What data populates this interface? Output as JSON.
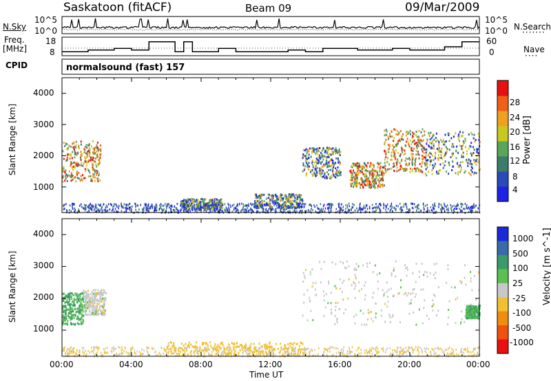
{
  "header": {
    "station": "Saskatoon (fitACF)",
    "beam": "Beam 09",
    "date": "09/Mar/2009"
  },
  "noise_panel": {
    "left_label": "N.Sky",
    "right_label": "N.Search",
    "left_ticks": [
      "10^5",
      "10^0"
    ],
    "right_ticks": [
      "10^5",
      "10^0"
    ]
  },
  "freq_panel": {
    "left_label_1": "Freq.",
    "left_label_2": "[MHz]",
    "right_label": "Nave",
    "left_ticks": [
      "18",
      "8"
    ],
    "right_ticks": [
      "60",
      "0"
    ]
  },
  "cpid_panel": {
    "label": "CPID",
    "program": "normalsound (fast) 157"
  },
  "x_axis": {
    "label": "Time UT",
    "ticks": [
      "00:00",
      "04:00",
      "08:00",
      "12:00",
      "16:00",
      "20:00",
      "00:00"
    ]
  },
  "power_panel": {
    "ylabel": "Slant Range [km]",
    "yticks": [
      "1000",
      "2000",
      "3000",
      "4000"
    ],
    "colorbar_label": "Power [dB]",
    "colorbar_ticks": [
      "4",
      "8",
      "12",
      "16",
      "20",
      "24",
      "28"
    ],
    "colors": [
      "#1e22e6",
      "#2a4ab8",
      "#3a7d6a",
      "#58a65a",
      "#c8c81e",
      "#f0a020",
      "#f06018",
      "#e81010"
    ]
  },
  "velocity_panel": {
    "ylabel": "Slant Range [km]",
    "yticks": [
      "1000",
      "2000",
      "3000",
      "4000"
    ],
    "colorbar_label": "Velocity [m s^-1]",
    "colorbar_ticks": [
      "1000",
      "500",
      "100",
      "25",
      "-25",
      "-100",
      "-500",
      "-1000"
    ],
    "colors": [
      "#1a2ad8",
      "#3a6aa8",
      "#3a9a6a",
      "#5cc050",
      "#c8c8c8",
      "#f0c030",
      "#f08c10",
      "#f05010",
      "#e81010"
    ]
  },
  "chart_data": {
    "type": "heatmap",
    "x_range_hours": [
      0,
      24
    ],
    "y_range_km": [
      180,
      4500
    ],
    "ground_scatter_color": "#c8c8c8",
    "power_regions": [
      {
        "t0": 0.0,
        "t1": 2.2,
        "r0": 1200,
        "r1": 2500,
        "level": "high"
      },
      {
        "t0": 6.8,
        "t1": 9.2,
        "r0": 300,
        "r1": 650,
        "level": "medium"
      },
      {
        "t0": 11.0,
        "t1": 13.8,
        "r0": 350,
        "r1": 800,
        "level": "medium"
      },
      {
        "t0": 13.8,
        "t1": 16.0,
        "r0": 1300,
        "r1": 2300,
        "level": "medium"
      },
      {
        "t0": 16.5,
        "t1": 18.5,
        "r0": 1000,
        "r1": 1800,
        "level": "high"
      },
      {
        "t0": 18.5,
        "t1": 20.8,
        "r0": 1500,
        "r1": 2900,
        "level": "high"
      },
      {
        "t0": 20.8,
        "t1": 24.0,
        "r0": 1400,
        "r1": 2800,
        "level": "medium"
      }
    ],
    "velocity_regions": [
      {
        "t0": 0.0,
        "t1": 1.2,
        "r0": 1200,
        "r1": 2200,
        "vel": 100
      },
      {
        "t0": 1.2,
        "t1": 2.5,
        "r0": 1500,
        "r1": 2300,
        "vel": 0
      },
      {
        "t0": 13.8,
        "t1": 24.0,
        "r0": 1200,
        "r1": 3200,
        "vel": 0
      },
      {
        "t0": 23.2,
        "t1": 24.0,
        "r0": 1400,
        "r1": 1800,
        "vel": 100
      },
      {
        "t0": 6.0,
        "t1": 14.0,
        "r0": 250,
        "r1": 650,
        "vel": -50
      }
    ]
  }
}
